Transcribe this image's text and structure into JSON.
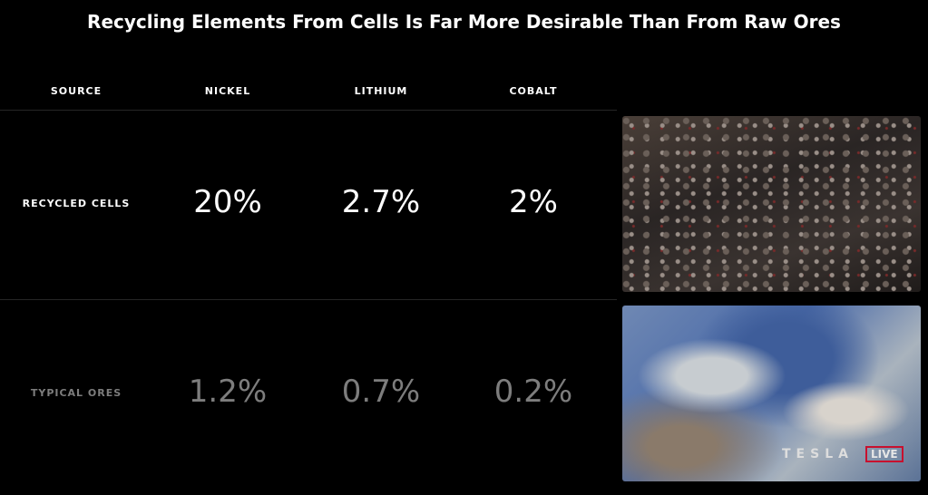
{
  "header": {
    "title": "Recycling Elements From Cells Is Far More Desirable Than From Raw Ores"
  },
  "table": {
    "columns": [
      "SOURCE",
      "NICKEL",
      "LITHIUM",
      "COBALT"
    ],
    "rows": [
      [
        "RECYCLED CELLS",
        "20%",
        "2.7%",
        "2%"
      ],
      [
        "TYPICAL ORES",
        "1.2%",
        "0.7%",
        "0.2%"
      ]
    ]
  },
  "watermark": {
    "brand": "TESLA",
    "badge": "LIVE"
  }
}
